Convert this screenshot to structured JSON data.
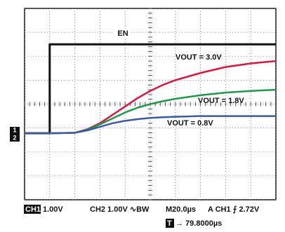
{
  "chart_data": {
    "type": "line",
    "x": [
      0,
      1,
      1,
      2,
      2.5,
      3,
      3.5,
      4,
      4.5,
      5,
      5.5,
      6,
      7,
      8,
      9,
      10
    ],
    "series": [
      {
        "name": "EN",
        "color": "#111111",
        "values": [
          2.78,
          2.78,
          6.5,
          6.5,
          6.5,
          6.5,
          6.5,
          6.5,
          6.5,
          6.5,
          6.5,
          6.5,
          6.5,
          6.5,
          6.5,
          6.5
        ]
      },
      {
        "name": "VOUT = 3.0V",
        "color": "#e0143c",
        "values": [
          2.78,
          2.78,
          2.78,
          2.8,
          2.95,
          3.2,
          3.55,
          3.9,
          4.25,
          4.55,
          4.8,
          5.0,
          5.3,
          5.55,
          5.7,
          5.8
        ]
      },
      {
        "name": "VOUT = 1.8V",
        "color": "#1a9a4a",
        "values": [
          2.78,
          2.78,
          2.78,
          2.8,
          2.93,
          3.15,
          3.4,
          3.65,
          3.85,
          4.0,
          4.12,
          4.22,
          4.37,
          4.48,
          4.55,
          4.6
        ]
      },
      {
        "name": "VOUT = 0.8V",
        "color": "#3a5aa8",
        "values": [
          2.78,
          2.78,
          2.78,
          2.8,
          2.9,
          3.05,
          3.2,
          3.3,
          3.37,
          3.42,
          3.45,
          3.47,
          3.5,
          3.5,
          3.5,
          3.5
        ]
      }
    ],
    "xlim": [
      0,
      10
    ],
    "ylim": [
      0,
      8
    ],
    "xticks": [
      0,
      1,
      2,
      3,
      4,
      5,
      6,
      7,
      8,
      9,
      10
    ],
    "yticks": [
      0,
      1,
      2,
      3,
      4,
      5,
      6,
      7,
      8
    ],
    "grid": true
  },
  "channel_markers": [
    "1",
    "2"
  ],
  "status": {
    "ch1": "CH1",
    "ch1_scale": "1.00V",
    "ch2": "CH2 1.00V ∿BW",
    "time": "M20.0µs",
    "trigger": "A  CH1 ⨍ 2.72V",
    "t_box": "T",
    "t_pos": "→ 79.8000µs"
  }
}
